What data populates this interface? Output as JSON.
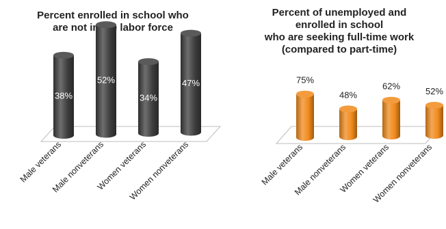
{
  "chart_data": [
    {
      "type": "bar",
      "title": "Percent enrolled in school who\nare not in the labor force",
      "categories": [
        "Male veterans",
        "Male nonveterans",
        "Women veterans",
        "Women nonveterans"
      ],
      "values": [
        38,
        52,
        34,
        47
      ],
      "value_labels": [
        "38%",
        "52%",
        "34%",
        "47%"
      ],
      "label_position": "inside",
      "ylim": [
        0,
        60
      ],
      "color": "#3d3d3d",
      "grid": false,
      "style": "3d-cylinder"
    },
    {
      "type": "bar",
      "title": "Percent of unemployed and\nenrolled in school\nwho are seeking full-time work\n(compared to part-time)",
      "categories": [
        "Male veterans",
        "Male nonveterans",
        "Women veterans",
        "Women nonveterans"
      ],
      "values": [
        75,
        48,
        62,
        52
      ],
      "value_labels": [
        "75%",
        "48%",
        "62%",
        "52%"
      ],
      "label_position": "above",
      "ylim": [
        0,
        110
      ],
      "color": "#f08a1c",
      "grid": false,
      "style": "3d-cylinder"
    }
  ]
}
